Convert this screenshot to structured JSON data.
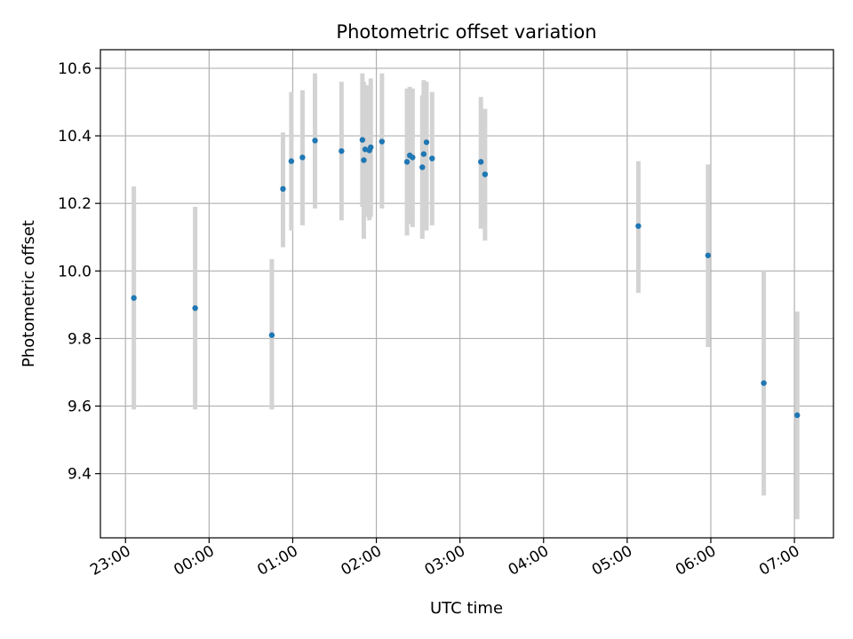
{
  "chart_data": {
    "type": "scatter",
    "title": "Photometric offset variation",
    "xlabel": "UTC time",
    "ylabel": "Photometric offset",
    "x_ticks": [
      "23:00",
      "00:00",
      "01:00",
      "02:00",
      "03:00",
      "04:00",
      "05:00",
      "06:00",
      "07:00"
    ],
    "y_ticks": [
      "9.4",
      "9.6",
      "9.8",
      "10.0",
      "10.2",
      "10.4",
      "10.6"
    ],
    "xlim": [
      "22:42",
      "07:28"
    ],
    "ylim": [
      9.21,
      10.655
    ],
    "grid": true,
    "colors": {
      "point": "#1f77b4",
      "errorbar": "#d3d3d3",
      "grid": "#b0b0b0"
    },
    "points": [
      {
        "x": "23:06",
        "y": 9.92,
        "err_low": 9.59,
        "err_high": 10.25
      },
      {
        "x": "23:50",
        "y": 9.89,
        "err_low": 9.59,
        "err_high": 10.19
      },
      {
        "x": "00:45",
        "y": 9.81,
        "err_low": 9.59,
        "err_high": 10.035
      },
      {
        "x": "00:53",
        "y": 10.243,
        "err_low": 10.07,
        "err_high": 10.41
      },
      {
        "x": "00:59",
        "y": 10.325,
        "err_low": 10.12,
        "err_high": 10.53
      },
      {
        "x": "01:07",
        "y": 10.336,
        "err_low": 10.135,
        "err_high": 10.535
      },
      {
        "x": "01:16",
        "y": 10.386,
        "err_low": 10.185,
        "err_high": 10.585
      },
      {
        "x": "01:35",
        "y": 10.355,
        "err_low": 10.15,
        "err_high": 10.56
      },
      {
        "x": "01:50",
        "y": 10.388,
        "err_low": 10.19,
        "err_high": 10.585
      },
      {
        "x": "01:51",
        "y": 10.328,
        "err_low": 10.095,
        "err_high": 10.56
      },
      {
        "x": "01:52",
        "y": 10.36,
        "err_low": 10.16,
        "err_high": 10.55
      },
      {
        "x": "01:55",
        "y": 10.357,
        "err_low": 10.15,
        "err_high": 10.55
      },
      {
        "x": "01:56",
        "y": 10.366,
        "err_low": 10.16,
        "err_high": 10.57
      },
      {
        "x": "02:04",
        "y": 10.383,
        "err_low": 10.185,
        "err_high": 10.585
      },
      {
        "x": "02:22",
        "y": 10.323,
        "err_low": 10.105,
        "err_high": 10.54
      },
      {
        "x": "02:24",
        "y": 10.342,
        "err_low": 10.14,
        "err_high": 10.545
      },
      {
        "x": "02:26",
        "y": 10.336,
        "err_low": 10.13,
        "err_high": 10.54
      },
      {
        "x": "02:33",
        "y": 10.307,
        "err_low": 10.095,
        "err_high": 10.52
      },
      {
        "x": "02:34",
        "y": 10.346,
        "err_low": 10.135,
        "err_high": 10.565
      },
      {
        "x": "02:36",
        "y": 10.381,
        "err_low": 10.12,
        "err_high": 10.56
      },
      {
        "x": "02:40",
        "y": 10.333,
        "err_low": 10.135,
        "err_high": 10.53
      },
      {
        "x": "03:15",
        "y": 10.323,
        "err_low": 10.125,
        "err_high": 10.515
      },
      {
        "x": "03:18",
        "y": 10.286,
        "err_low": 10.09,
        "err_high": 10.48
      },
      {
        "x": "05:08",
        "y": 10.133,
        "err_low": 9.935,
        "err_high": 10.325
      },
      {
        "x": "05:58",
        "y": 10.046,
        "err_low": 9.775,
        "err_high": 10.315
      },
      {
        "x": "06:38",
        "y": 9.668,
        "err_low": 9.335,
        "err_high": 10.0
      },
      {
        "x": "07:02",
        "y": 9.573,
        "err_low": 9.265,
        "err_high": 9.88
      }
    ]
  }
}
